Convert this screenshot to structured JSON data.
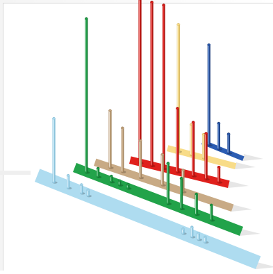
{
  "chart_data": {
    "type": "bar",
    "style": "3d-needle",
    "title": "",
    "xlabel": "",
    "ylabel": "",
    "grid": false,
    "legend": "none",
    "series": [
      {
        "color": "#aedcf0",
        "values": [
          95,
          18,
          12,
          8,
          6,
          14,
          9,
          7
        ]
      },
      {
        "color": "#22a34a",
        "values": [
          230,
          12,
          8,
          6,
          5,
          60,
          45,
          30,
          22
        ]
      },
      {
        "color": "#c8aa85",
        "values": [
          85,
          65,
          55,
          45,
          32
        ]
      },
      {
        "color": "#e0201c",
        "values": [
          245,
          245,
          245,
          95,
          80,
          68,
          22
        ]
      },
      {
        "color": "#f8dc88",
        "values": [
          190,
          45,
          35
        ]
      },
      {
        "color": "#2c5db3",
        "values": [
          150,
          38,
          28
        ]
      }
    ]
  }
}
